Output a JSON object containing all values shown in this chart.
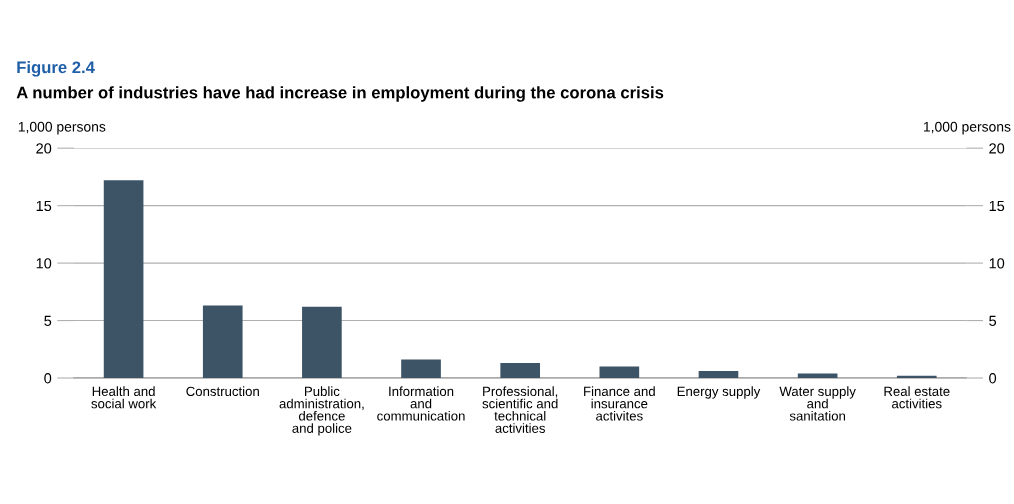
{
  "chart_data": {
    "type": "bar",
    "title": "Figure 2.4",
    "subtitle": "A number of industries have had increase in employment during the corona crisis",
    "ylabel": "1,000 persons",
    "y2label": "1,000 persons",
    "categories": [
      "Health and\nsocial work",
      "Construction",
      "Public\nadministration,\ndefence\nand police",
      "Information\nand\ncommunication",
      "Professional,\nscientific and\ntechnical\nactivities",
      "Finance and\ninsurance\nactivites",
      "Energy supply",
      "Water supply\nand\nsanitation",
      "Real estate\nactivities"
    ],
    "series": [
      {
        "color": "#3d5467",
        "values": [
          17.2,
          6.3,
          6.2,
          1.6,
          1.3,
          1.0,
          0.6,
          0.4,
          0.2
        ]
      }
    ],
    "ylim": [
      0,
      20
    ],
    "yticks": [
      0,
      5,
      10,
      15,
      20
    ],
    "y2lim": [
      0,
      20
    ],
    "y2ticks": [
      0,
      5,
      10,
      15,
      20
    ],
    "grid": "y",
    "legend": false
  }
}
